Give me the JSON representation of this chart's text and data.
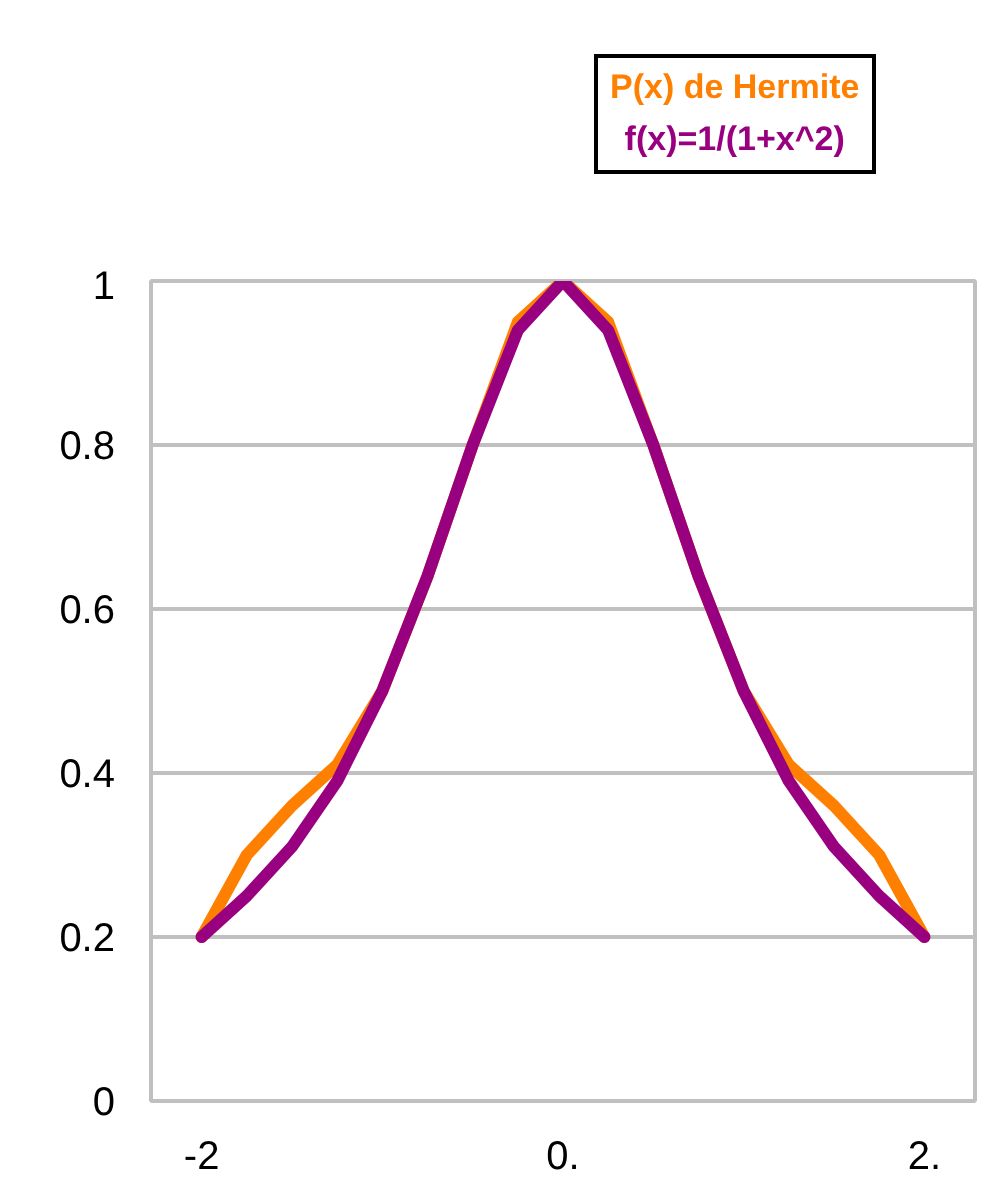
{
  "chart_data": {
    "type": "line",
    "x": [
      -2,
      -1.75,
      -1.5,
      -1.25,
      -1,
      -0.75,
      -0.5,
      -0.25,
      0,
      0.25,
      0.5,
      0.75,
      1,
      1.25,
      1.5,
      1.75,
      2
    ],
    "series": [
      {
        "name": "P(x) de Hermite",
        "color": "#ff8000",
        "values": [
          0.2,
          0.3,
          0.36,
          0.41,
          0.5,
          0.64,
          0.8,
          0.95,
          1,
          0.95,
          0.8,
          0.64,
          0.5,
          0.41,
          0.36,
          0.3,
          0.2
        ]
      },
      {
        "name": "f(x)=1/(1+x^2)",
        "color": "#990080",
        "values": [
          0.2,
          0.25,
          0.31,
          0.39,
          0.5,
          0.64,
          0.8,
          0.94,
          1,
          0.94,
          0.8,
          0.64,
          0.5,
          0.39,
          0.31,
          0.25,
          0.2
        ]
      }
    ],
    "xlim": [
      -2.28,
      2.28
    ],
    "ylim": [
      0,
      1
    ],
    "xticks": [
      -2,
      {
        "value": 0,
        "label": "0."
      },
      {
        "value": 2,
        "label": "2."
      }
    ],
    "yticks": [
      0,
      0.2,
      0.4,
      0.6,
      0.8,
      1
    ],
    "grid": "y",
    "marker": "none",
    "line_style": "solid"
  }
}
